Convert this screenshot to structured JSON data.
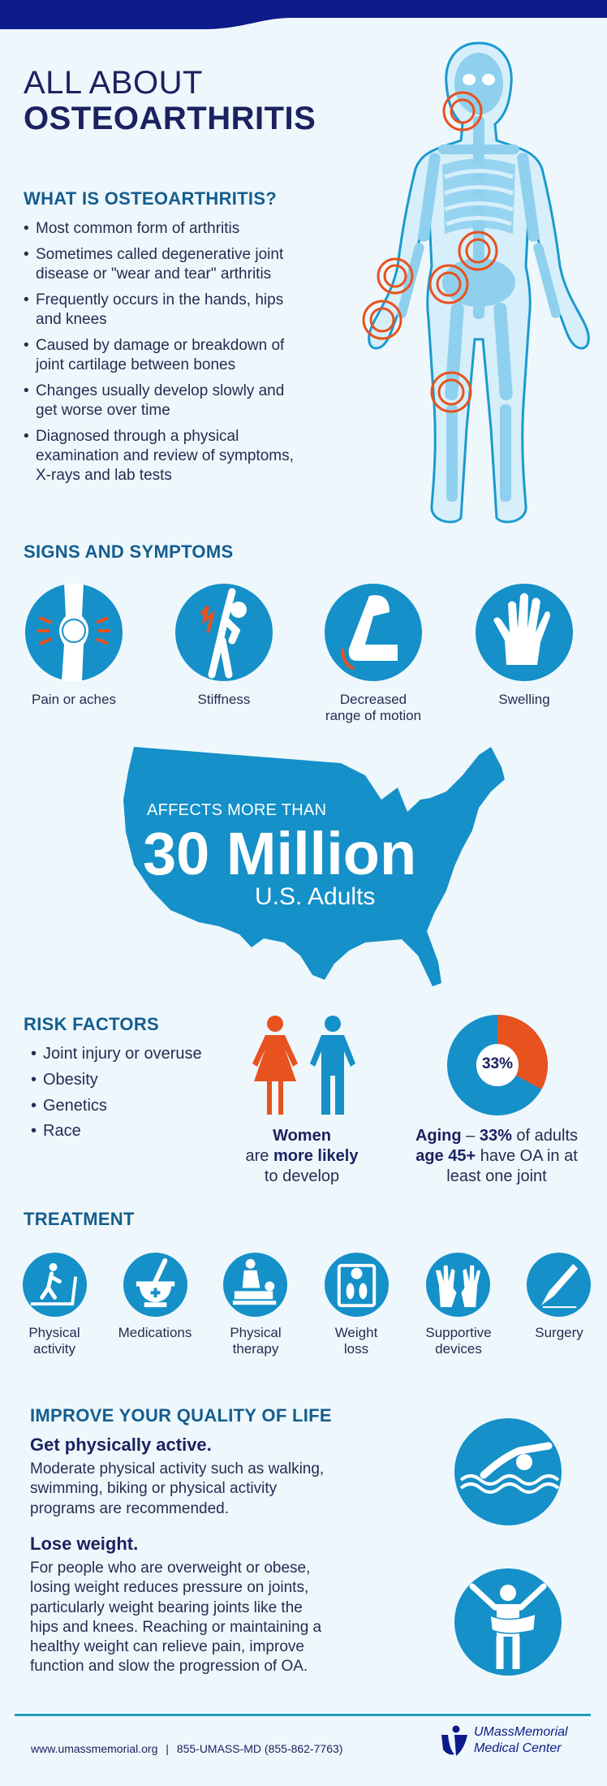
{
  "colors": {
    "navy": "#0c1a8a",
    "heading": "#155d8f",
    "icon_blue": "#1590c8",
    "accent_orange": "#e8521f",
    "background": "#eef8fc",
    "footer_rule": "#1ea0c0"
  },
  "header": {
    "title_line1": "ALL ABOUT",
    "title_line2": "OSTEOARTHRITIS"
  },
  "what_is": {
    "heading": "WHAT IS OSTEOARTHRITIS?",
    "bullets": [
      [
        "Most common form of arthritis"
      ],
      [
        "Sometimes called degenerative joint",
        "disease or \"wear and tear\" arthritis"
      ],
      [
        "Frequently occurs in the hands, hips",
        "and knees"
      ],
      [
        "Caused by damage or breakdown of",
        "joint cartilage between bones"
      ],
      [
        "Changes usually develop slowly and",
        "get worse over time"
      ],
      [
        "Diagnosed through a physical",
        "examination and review of symptoms,",
        "X-rays and lab tests"
      ]
    ],
    "illustration": "skeleton with highlighted joints (neck, spine, hip, wrist, hand, knee)"
  },
  "signs": {
    "heading": "SIGNS AND SYMPTOMS",
    "items": [
      {
        "icon": "knee-pain-icon",
        "lines": [
          "Pain or aches"
        ]
      },
      {
        "icon": "stiff-figure-icon",
        "lines": [
          "Stiffness"
        ]
      },
      {
        "icon": "bent-arm-icon",
        "lines": [
          "Decreased",
          "range of motion"
        ]
      },
      {
        "icon": "swollen-hand-icon",
        "lines": [
          "Swelling"
        ]
      }
    ]
  },
  "stat": {
    "pre": "AFFECTS MORE THAN",
    "big": "30 Million",
    "post": "U.S. Adults",
    "icon": "us-map-icon"
  },
  "risk": {
    "heading": "RISK FACTORS",
    "bullets": [
      "Joint injury or overuse",
      "Obesity",
      "Genetics",
      "Race"
    ],
    "women": {
      "b1": "Women",
      "t2a": "are ",
      "b2": "more likely",
      "t3": "to develop"
    },
    "aging": {
      "b1": "Aging",
      "t1": " – ",
      "b2": "33%",
      "t2": " of adults",
      "b3": "age 45+",
      "t3": " have OA in at",
      "t4": "least one joint"
    },
    "donut": {
      "label": "33%",
      "percent": 33
    }
  },
  "treatment": {
    "heading": "TREATMENT",
    "items": [
      {
        "icon": "treadmill-icon",
        "lines": [
          "Physical",
          "activity"
        ]
      },
      {
        "icon": "mortar-pestle-icon",
        "lines": [
          "Medications"
        ]
      },
      {
        "icon": "therapist-icon",
        "lines": [
          "Physical",
          "therapy"
        ]
      },
      {
        "icon": "scale-icon",
        "lines": [
          "Weight",
          "loss"
        ]
      },
      {
        "icon": "gloves-icon",
        "lines": [
          "Supportive",
          "devices"
        ]
      },
      {
        "icon": "scalpel-icon",
        "lines": [
          "Surgery"
        ]
      }
    ]
  },
  "improve": {
    "heading": "IMPROVE YOUR QUALITY OF LIFE",
    "sections": [
      {
        "title": "Get physically active.",
        "lines": [
          "Moderate physical activity such as walking,",
          "swimming, biking or physical activity",
          "programs are recommended."
        ],
        "icon": "swimmer-icon"
      },
      {
        "title": "Lose weight.",
        "lines": [
          "For people who are overweight or obese,",
          "losing weight reduces pressure on joints,",
          "particularly weight bearing joints like the",
          "hips and knees. Reaching or maintaining a",
          "healthy weight can relieve pain, improve",
          "function and slow the progression of OA."
        ],
        "icon": "tape-measure-person-icon"
      }
    ]
  },
  "footer": {
    "url": "www.umassmemorial.org",
    "separator": "|",
    "phone": "855-UMASS-MD (855-862-7763)",
    "logo_line1": "UMassMemorial",
    "logo_line2": "Medical Center"
  }
}
